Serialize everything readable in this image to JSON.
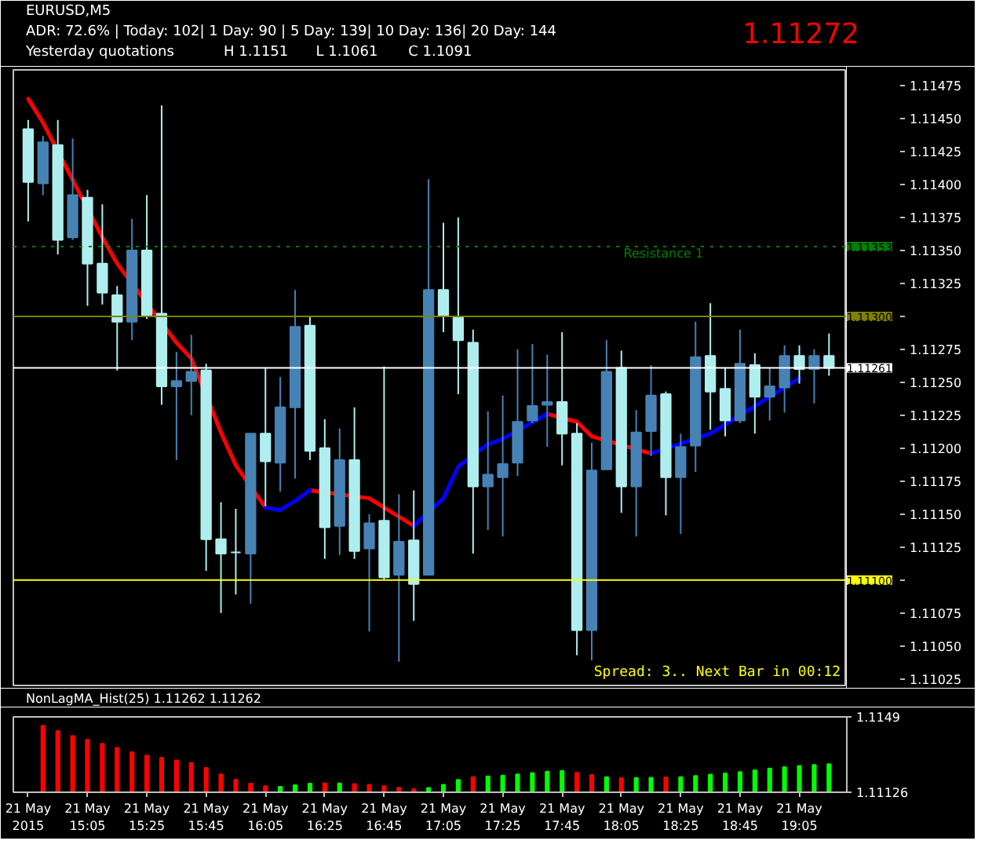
{
  "chart_data": [
    {
      "type": "candlestick",
      "title": "EURUSD,M5",
      "annotations": [
        "1.11272",
        "ADR: 72.6% | Today: 102| 1 Day: 90 | 5 Day: 139| 10 Day: 136| 20 Day: 144",
        "Yesterday quotations",
        "H 1.1151",
        "L 1.1061",
        "C 1.1091",
        "Spread: 3.. Next Bar in 00:12",
        {
          "text": "Resistance 1",
          "y": 1.11353
        }
      ],
      "x": [
        "2015-05-21T14:45",
        "2015-05-21T14:50",
        "2015-05-21T14:55",
        "2015-05-21T15:00",
        "2015-05-21T15:05",
        "2015-05-21T15:10",
        "2015-05-21T15:15",
        "2015-05-21T15:20",
        "2015-05-21T15:25",
        "2015-05-21T15:30",
        "2015-05-21T15:35",
        "2015-05-21T15:40",
        "2015-05-21T15:45",
        "2015-05-21T15:50",
        "2015-05-21T15:55",
        "2015-05-21T16:00",
        "2015-05-21T16:05",
        "2015-05-21T16:10",
        "2015-05-21T16:15",
        "2015-05-21T16:20",
        "2015-05-21T16:25",
        "2015-05-21T16:30",
        "2015-05-21T16:35",
        "2015-05-21T16:40",
        "2015-05-21T16:45",
        "2015-05-21T16:50",
        "2015-05-21T16:55",
        "2015-05-21T17:00",
        "2015-05-21T17:05",
        "2015-05-21T17:10",
        "2015-05-21T17:15",
        "2015-05-21T17:20",
        "2015-05-21T17:25",
        "2015-05-21T17:30",
        "2015-05-21T17:35",
        "2015-05-21T17:40",
        "2015-05-21T17:45",
        "2015-05-21T17:50",
        "2015-05-21T17:55",
        "2015-05-21T18:00",
        "2015-05-21T18:05",
        "2015-05-21T18:10",
        "2015-05-21T18:15",
        "2015-05-21T18:20",
        "2015-05-21T18:25",
        "2015-05-21T18:30",
        "2015-05-21T18:35",
        "2015-05-21T18:40",
        "2015-05-21T18:45",
        "2015-05-21T18:50",
        "2015-05-21T18:55",
        "2015-05-21T19:00",
        "2015-05-21T19:05",
        "2015-05-21T19:10",
        "2015-05-21T19:15"
      ],
      "ohlc": [
        [
          1.11442,
          1.11449,
          1.11372,
          1.11402
        ],
        [
          1.11401,
          1.11437,
          1.11392,
          1.11432
        ],
        [
          1.1143,
          1.11449,
          1.11347,
          1.11358
        ],
        [
          1.1136,
          1.11435,
          1.11358,
          1.11392
        ],
        [
          1.1139,
          1.11396,
          1.11308,
          1.1134
        ],
        [
          1.1134,
          1.11385,
          1.11309,
          1.11318
        ],
        [
          1.11316,
          1.11323,
          1.11259,
          1.11296
        ],
        [
          1.11296,
          1.11374,
          1.11282,
          1.1135
        ],
        [
          1.1135,
          1.11392,
          1.11298,
          1.113
        ],
        [
          1.11302,
          1.1146,
          1.11233,
          1.11247
        ],
        [
          1.11247,
          1.11273,
          1.11191,
          1.11251
        ],
        [
          1.11251,
          1.11286,
          1.11225,
          1.11258
        ],
        [
          1.11259,
          1.11264,
          1.11107,
          1.11131
        ],
        [
          1.11131,
          1.11159,
          1.11075,
          1.1112
        ],
        [
          1.11121,
          1.11154,
          1.11089,
          1.11121
        ],
        [
          1.1112,
          1.11211,
          1.11082,
          1.11211
        ],
        [
          1.11211,
          1.11261,
          1.11156,
          1.1119
        ],
        [
          1.11189,
          1.11254,
          1.11167,
          1.11231
        ],
        [
          1.11231,
          1.1132,
          1.11177,
          1.11292
        ],
        [
          1.11293,
          1.113,
          1.11191,
          1.11198
        ],
        [
          1.112,
          1.11222,
          1.11116,
          1.1114
        ],
        [
          1.11141,
          1.11215,
          1.11119,
          1.11191
        ],
        [
          1.11191,
          1.11231,
          1.11116,
          1.11122
        ],
        [
          1.11124,
          1.1115,
          1.11061,
          1.11143
        ],
        [
          1.11145,
          1.11262,
          1.111,
          1.11102
        ],
        [
          1.11104,
          1.11165,
          1.11038,
          1.11129
        ],
        [
          1.1113,
          1.11168,
          1.11069,
          1.11097
        ],
        [
          1.11104,
          1.11404,
          1.11104,
          1.1132
        ],
        [
          1.1132,
          1.11371,
          1.11288,
          1.113
        ],
        [
          1.113,
          1.11375,
          1.11241,
          1.11282
        ],
        [
          1.1128,
          1.1129,
          1.1112,
          1.11171
        ],
        [
          1.11171,
          1.11228,
          1.11138,
          1.1118
        ],
        [
          1.11178,
          1.1124,
          1.11133,
          1.11188
        ],
        [
          1.11189,
          1.11275,
          1.11179,
          1.1122
        ],
        [
          1.11221,
          1.11279,
          1.11219,
          1.11232
        ],
        [
          1.11233,
          1.11271,
          1.11201,
          1.11235
        ],
        [
          1.11235,
          1.11288,
          1.11187,
          1.11211
        ],
        [
          1.11211,
          1.11219,
          1.11043,
          1.11062
        ],
        [
          1.11062,
          1.11204,
          1.11039,
          1.11183
        ],
        [
          1.11184,
          1.11282,
          1.11184,
          1.11258
        ],
        [
          1.11261,
          1.11274,
          1.11151,
          1.11171
        ],
        [
          1.11171,
          1.11229,
          1.11133,
          1.11212
        ],
        [
          1.11213,
          1.11263,
          1.11194,
          1.1124
        ],
        [
          1.11241,
          1.11243,
          1.11149,
          1.11178
        ],
        [
          1.11178,
          1.11211,
          1.11135,
          1.11201
        ],
        [
          1.11202,
          1.11296,
          1.11182,
          1.11269
        ],
        [
          1.1127,
          1.1131,
          1.11214,
          1.11243
        ],
        [
          1.11245,
          1.11261,
          1.11209,
          1.11221
        ],
        [
          1.11221,
          1.1129,
          1.11219,
          1.11264
        ],
        [
          1.11263,
          1.11272,
          1.11211,
          1.11239
        ],
        [
          1.11239,
          1.11261,
          1.11221,
          1.11247
        ],
        [
          1.11246,
          1.11278,
          1.11227,
          1.1127
        ],
        [
          1.1127,
          1.11278,
          1.11249,
          1.1126
        ],
        [
          1.1126,
          1.11275,
          1.11234,
          1.1127
        ],
        [
          1.1127,
          1.11287,
          1.11255,
          1.11261
        ]
      ],
      "colors": [
        "#afeeee",
        "#4682b4",
        "#afeeee",
        "#4682b4",
        "#afeeee",
        "#afeeee",
        "#afeeee",
        "#4682b4",
        "#afeeee",
        "#afeeee",
        "#4682b4",
        "#4682b4",
        "#afeeee",
        "#afeeee",
        "#afeeee",
        "#4682b4",
        "#afeeee",
        "#4682b4",
        "#4682b4",
        "#afeeee",
        "#afeeee",
        "#4682b4",
        "#afeeee",
        "#4682b4",
        "#afeeee",
        "#4682b4",
        "#afeeee",
        "#4682b4",
        "#afeeee",
        "#afeeee",
        "#afeeee",
        "#4682b4",
        "#4682b4",
        "#4682b4",
        "#4682b4",
        "#4682b4",
        "#afeeee",
        "#afeeee",
        "#4682b4",
        "#4682b4",
        "#afeeee",
        "#4682b4",
        "#4682b4",
        "#afeeee",
        "#4682b4",
        "#4682b4",
        "#afeeee",
        "#afeeee",
        "#4682b4",
        "#afeeee",
        "#4682b4",
        "#4682b4",
        "#afeeee",
        "#4682b4",
        "#afeeee"
      ],
      "series": [
        {
          "type": "line",
          "color": "#ff0000",
          "x": [
            "2015-05-21T14:45",
            "2015-05-21T14:50",
            "2015-05-21T15:10",
            "2015-05-21T15:15",
            "2015-05-21T15:35",
            "2015-05-21T15:40",
            "2015-05-21T15:50",
            "2015-05-21T15:55",
            "2015-05-21T16:05",
            "2015-05-21T16:10",
            "2015-05-21T16:20",
            "2015-05-21T16:40",
            "2015-05-21T16:45",
            "2015-05-21T16:50",
            "2015-05-21T16:55",
            "2015-05-21T17:00",
            "2015-05-21T17:40",
            "2015-05-21T17:50",
            "2015-05-21T17:55",
            "2015-05-21T18:15"
          ],
          "values": [
            1.11465,
            1.11447,
            1.1136,
            1.1134,
            1.1128,
            1.11268,
            1.11212,
            1.11187,
            1.11155,
            null,
            1.11168,
            1.11162,
            1.11155,
            1.11148,
            1.11141,
            null,
            1.11226,
            1.1122,
            1.11209,
            1.11196
          ]
        },
        {
          "type": "line",
          "color": "#0000ff",
          "x": [
            "2015-05-21T16:05",
            "2015-05-21T16:10",
            "2015-05-21T16:15",
            "2015-05-21T16:20",
            "2015-05-21T16:25",
            "2015-05-21T16:55",
            "2015-05-21T17:05",
            "2015-05-21T17:10",
            "2015-05-21T17:20",
            "2015-05-21T17:25",
            "2015-05-21T17:40",
            "2015-05-21T17:45",
            "2015-05-21T18:15",
            "2015-05-21T18:35",
            "2015-05-21T18:50",
            "2015-05-21T19:05"
          ],
          "values": [
            1.11155,
            1.11153,
            1.1116,
            1.11168,
            null,
            1.11141,
            1.11162,
            1.11186,
            1.11203,
            1.11207,
            1.11226,
            null,
            1.11196,
            1.11211,
            1.11232,
            1.11253
          ]
        }
      ],
      "xlim": [
        "2015-05-21T14:40",
        "2015-05-21T19:21"
      ],
      "ylim": [
        1.1102,
        1.11487
      ],
      "yticks": [
        1.11025,
        {
          "value": 1.1105,
          "label": "1.11050"
        },
        1.11075,
        {
          "value": 1.111,
          "label": null
        },
        1.11125,
        {
          "value": 1.1115,
          "label": "1.11150"
        },
        1.11175,
        {
          "value": 1.112,
          "label": "1.11200"
        },
        1.11225,
        {
          "value": 1.1125,
          "label": "1.11250"
        },
        1.11275,
        {
          "value": 1.113,
          "label": null
        },
        1.11325,
        {
          "value": 1.1135,
          "label": "1.11350"
        },
        1.11375,
        {
          "value": 1.114,
          "label": "1.11400"
        },
        1.11425,
        {
          "value": 1.1145,
          "label": "1.11450"
        },
        1.11475
      ],
      "ref_lines": [
        {
          "axis": "y",
          "value": 1.11353,
          "label": "1.11353",
          "color": "#008000",
          "line_style": "dotted"
        },
        {
          "axis": "y",
          "value": 1.113,
          "label": "1.11300",
          "color": "#808000"
        },
        {
          "axis": "y",
          "value": 1.11261,
          "label": "1.11261",
          "color": "#ffffff"
        },
        {
          "axis": "y",
          "value": 1.111,
          "label": "1.11100",
          "color": "#ffff00"
        }
      ],
      "tick_labels": "y"
    },
    {
      "type": "bar",
      "title": "NonLagMA_Hist(25) 1.11262 1.11262",
      "x": [
        "2015-05-21T14:50",
        "2015-05-21T14:55",
        "2015-05-21T15:00",
        "2015-05-21T15:05",
        "2015-05-21T15:10",
        "2015-05-21T15:15",
        "2015-05-21T15:20",
        "2015-05-21T15:25",
        "2015-05-21T15:30",
        "2015-05-21T15:35",
        "2015-05-21T15:40",
        "2015-05-21T15:45",
        "2015-05-21T15:50",
        "2015-05-21T15:55",
        "2015-05-21T16:00",
        "2015-05-21T16:05",
        "2015-05-21T16:10",
        "2015-05-21T16:15",
        "2015-05-21T16:20",
        "2015-05-21T16:25",
        "2015-05-21T16:30",
        "2015-05-21T16:35",
        "2015-05-21T16:40",
        "2015-05-21T16:45",
        "2015-05-21T16:50",
        "2015-05-21T16:55",
        "2015-05-21T17:00",
        "2015-05-21T17:05",
        "2015-05-21T17:10",
        "2015-05-21T17:15",
        "2015-05-21T17:20",
        "2015-05-21T17:25",
        "2015-05-21T17:30",
        "2015-05-21T17:35",
        "2015-05-21T17:40",
        "2015-05-21T17:45",
        "2015-05-21T17:50",
        "2015-05-21T17:55",
        "2015-05-21T18:00",
        "2015-05-21T18:05",
        "2015-05-21T18:10",
        "2015-05-21T18:15",
        "2015-05-21T18:20",
        "2015-05-21T18:25",
        "2015-05-21T18:30",
        "2015-05-21T18:35",
        "2015-05-21T18:40",
        "2015-05-21T18:45",
        "2015-05-21T18:50",
        "2015-05-21T18:55",
        "2015-05-21T19:00",
        "2015-05-21T19:05",
        "2015-05-21T19:10",
        "2015-05-21T19:15"
      ],
      "values": [
        1.11447,
        1.11422,
        1.11398,
        1.1138,
        1.1136,
        1.1134,
        1.11319,
        1.11303,
        1.11293,
        1.1128,
        1.11268,
        1.11244,
        1.11212,
        1.11187,
        1.11168,
        1.11155,
        1.11153,
        1.1116,
        1.11168,
        1.1117,
        1.11169,
        1.11166,
        1.11162,
        1.11155,
        1.11148,
        1.11141,
        1.11147,
        1.11162,
        1.11186,
        1.11199,
        1.11203,
        1.11207,
        1.11212,
        1.11219,
        1.11226,
        1.11229,
        1.1122,
        1.11209,
        1.11199,
        1.11194,
        1.11195,
        1.11196,
        1.11198,
        1.11199,
        1.11205,
        1.11211,
        1.11217,
        1.11224,
        1.11232,
        1.11241,
        1.11247,
        1.11253,
        1.11258,
        1.11262
      ],
      "colors": [
        "#ff0000",
        "#ff0000",
        "#ff0000",
        "#ff0000",
        "#ff0000",
        "#ff0000",
        "#ff0000",
        "#ff0000",
        "#ff0000",
        "#ff0000",
        "#ff0000",
        "#ff0000",
        "#ff0000",
        "#ff0000",
        "#ff0000",
        "#ff0000",
        "#00ff00",
        "#00ff00",
        "#00ff00",
        "#ff0000",
        "#00ff00",
        "#ff0000",
        "#ff0000",
        "#ff0000",
        "#ff0000",
        "#ff0000",
        "#00ff00",
        "#00ff00",
        "#00ff00",
        "#ff0000",
        "#00ff00",
        "#00ff00",
        "#00ff00",
        "#00ff00",
        "#00ff00",
        "#00ff00",
        "#ff0000",
        "#ff0000",
        "#00ff00",
        "#ff0000",
        "#00ff00",
        "#00ff00",
        "#ff0000",
        "#00ff00",
        "#00ff00",
        "#00ff00",
        "#00ff00",
        "#00ff00",
        "#00ff00",
        "#00ff00",
        "#00ff00",
        "#00ff00",
        "#00ff00",
        "#00ff00"
      ],
      "xlim": [
        "2015-05-21T14:40",
        "2015-05-21T19:21"
      ],
      "xticks": [
        {
          "value": "2015-05-21T14:45",
          "label": "21 May 2015"
        },
        {
          "value": "2015-05-21T15:05",
          "label": "21 May 15:05"
        },
        {
          "value": "2015-05-21T15:25",
          "label": "21 May 15:25"
        },
        {
          "value": "2015-05-21T15:45",
          "label": "21 May 15:45"
        },
        {
          "value": "2015-05-21T16:05",
          "label": "21 May 16:05"
        },
        {
          "value": "2015-05-21T16:25",
          "label": "21 May 16:25"
        },
        {
          "value": "2015-05-21T16:45",
          "label": "21 May 16:45"
        },
        {
          "value": "2015-05-21T17:05",
          "label": "21 May 17:05"
        },
        {
          "value": "2015-05-21T17:25",
          "label": "21 May 17:25"
        },
        {
          "value": "2015-05-21T17:45",
          "label": "21 May 17:45"
        },
        {
          "value": "2015-05-21T18:05",
          "label": "21 May 18:05"
        },
        {
          "value": "2015-05-21T18:25",
          "label": "21 May 18:25"
        },
        {
          "value": "2015-05-21T18:45",
          "label": "21 May 18:45"
        },
        {
          "value": "2015-05-21T19:05",
          "label": "21 May 19:05"
        }
      ],
      "ylim": [
        1.11126,
        1.1149
      ],
      "yticks": [
        1.11126,
        1.1149
      ]
    }
  ]
}
